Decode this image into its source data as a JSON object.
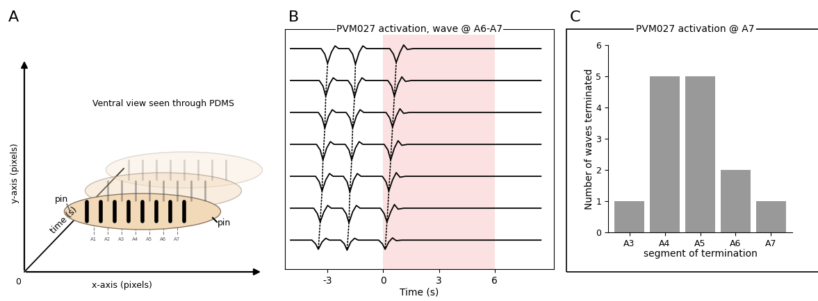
{
  "panel_labels": [
    "A",
    "B",
    "C"
  ],
  "diagram": {
    "title": "Ventral view seen through PDMS",
    "axes": {
      "x": "x-axis (pixels)",
      "y": "y-axis (pixels)",
      "z": "time (s)",
      "origin": "0"
    },
    "pins": [
      "pin",
      "pin"
    ],
    "segments": [
      "A1",
      "A2",
      "A3",
      "A4",
      "A5",
      "A6",
      "A7"
    ]
  },
  "chart_data": [
    {
      "type": "line",
      "title": "PVM027 activation, wave @ A6-A7",
      "x_label": "Time (s)",
      "xlim": [
        -5.3,
        9.2
      ],
      "xticks": [
        -3,
        0,
        3,
        6
      ],
      "ylim": [
        -1.2,
        0.5
      ],
      "tick_labels": "x",
      "color": "#000000",
      "line_style": "solid",
      "shaded_span": [
        0,
        6
      ],
      "shade_color": "#fbe1e1",
      "series": [
        {
          "dips": [
            -3.0,
            -1.5,
            0.7
          ],
          "x": [
            -5.0,
            -3.35,
            -3.15,
            -3.0,
            -2.8,
            -2.6,
            -2.4,
            -1.85,
            -1.65,
            -1.5,
            -1.3,
            -1.1,
            -0.9,
            0.35,
            0.55,
            0.7,
            0.9,
            1.1,
            1.3,
            1.6,
            8.5
          ],
          "values": [
            0,
            0,
            -0.3,
            -0.8,
            -0.2,
            0.15,
            0,
            0,
            -0.3,
            -0.85,
            -0.2,
            0.15,
            0,
            0,
            -0.3,
            -0.75,
            -0.2,
            0.2,
            -0.05,
            0,
            0
          ]
        },
        {
          "dips": [
            -3.1,
            -1.55,
            0.6
          ],
          "x": [
            -5.0,
            -3.45,
            -3.25,
            -3.1,
            -2.9,
            -2.7,
            -2.5,
            -1.9,
            -1.7,
            -1.55,
            -1.35,
            -1.15,
            -0.95,
            0.25,
            0.45,
            0.6,
            0.8,
            1.0,
            1.2,
            1.5,
            8.5
          ],
          "values": [
            0,
            0,
            -0.3,
            -0.85,
            -0.2,
            0.15,
            0,
            0,
            -0.3,
            -0.9,
            -0.2,
            0.15,
            0,
            0,
            -0.3,
            -0.85,
            -0.2,
            0.2,
            -0.05,
            0,
            0
          ]
        },
        {
          "dips": [
            -3.15,
            -1.65,
            0.5
          ],
          "x": [
            -5.0,
            -3.5,
            -3.3,
            -3.15,
            -2.95,
            -2.75,
            -2.55,
            -2.0,
            -1.8,
            -1.65,
            -1.45,
            -1.25,
            -1.05,
            0.15,
            0.35,
            0.5,
            0.7,
            0.9,
            1.1,
            1.4,
            8.5
          ],
          "values": [
            0,
            0,
            -0.3,
            -0.85,
            -0.2,
            0.15,
            0,
            0,
            -0.3,
            -0.85,
            -0.2,
            0.15,
            0,
            0,
            -0.3,
            -0.8,
            -0.2,
            0.2,
            -0.05,
            0,
            0
          ]
        },
        {
          "dips": [
            -3.25,
            -1.7,
            0.4
          ],
          "x": [
            -5.0,
            -3.6,
            -3.4,
            -3.25,
            -3.05,
            -2.85,
            -2.65,
            -2.05,
            -1.85,
            -1.7,
            -1.5,
            -1.3,
            -1.1,
            0.05,
            0.25,
            0.4,
            0.6,
            0.8,
            1.0,
            1.3,
            8.5
          ],
          "values": [
            0,
            0,
            -0.3,
            -0.85,
            -0.2,
            0.15,
            0,
            0,
            -0.3,
            -0.85,
            -0.2,
            0.15,
            0,
            0,
            -0.3,
            -0.85,
            -0.2,
            0.2,
            -0.05,
            0,
            0
          ]
        },
        {
          "dips": [
            -3.3,
            -1.8,
            0.3
          ],
          "x": [
            -5.0,
            -3.65,
            -3.45,
            -3.3,
            -3.1,
            -2.9,
            -2.7,
            -2.15,
            -1.95,
            -1.8,
            -1.6,
            -1.4,
            -1.2,
            -0.05,
            0.15,
            0.3,
            0.5,
            0.7,
            0.9,
            1.2,
            8.5
          ],
          "values": [
            0,
            0,
            -0.3,
            -0.8,
            -0.2,
            0.15,
            0,
            0,
            -0.3,
            -0.85,
            -0.2,
            0.15,
            0,
            0,
            -0.3,
            -0.8,
            -0.2,
            0.2,
            -0.05,
            0,
            0
          ]
        },
        {
          "dips": [
            -3.4,
            -1.85,
            0.2
          ],
          "x": [
            -5.0,
            -3.75,
            -3.55,
            -3.4,
            -3.2,
            -3.0,
            -2.8,
            -2.2,
            -2.0,
            -1.85,
            -1.65,
            -1.45,
            -1.25,
            -0.15,
            0.05,
            0.2,
            0.4,
            0.6,
            0.8,
            1.1,
            8.5
          ],
          "values": [
            0,
            0,
            -0.3,
            -0.75,
            -0.2,
            0.15,
            0,
            0,
            -0.3,
            -0.8,
            -0.2,
            0.15,
            0,
            0,
            -0.3,
            -0.75,
            -0.2,
            0.2,
            -0.05,
            0,
            0
          ]
        },
        {
          "dips": [
            -3.5,
            -1.95,
            0.1
          ],
          "x": [
            -5.0,
            -3.85,
            -3.65,
            -3.5,
            -3.3,
            -3.1,
            -2.9,
            -2.3,
            -2.1,
            -1.95,
            -1.75,
            -1.55,
            -1.35,
            -0.25,
            -0.05,
            0.1,
            0.3,
            0.5,
            0.7,
            1.0,
            8.5
          ],
          "values": [
            0,
            0,
            -0.2,
            -0.5,
            -0.1,
            0.1,
            0,
            0,
            -0.2,
            -0.55,
            -0.1,
            0.1,
            0,
            0,
            -0.2,
            -0.5,
            -0.1,
            0.12,
            -0.03,
            0,
            0
          ]
        }
      ]
    },
    {
      "type": "bar",
      "title": "PVM027 activation @ A7",
      "categories": [
        "A3",
        "A4",
        "A5",
        "A6",
        "A7"
      ],
      "values": [
        1,
        5,
        5,
        2,
        1
      ],
      "color": "#999999",
      "ylim": [
        0,
        6
      ],
      "yticks": [
        0,
        1,
        2,
        3,
        4,
        5,
        6
      ],
      "x_label": "segment of termination",
      "y_label": "Number of waves terminated"
    }
  ]
}
